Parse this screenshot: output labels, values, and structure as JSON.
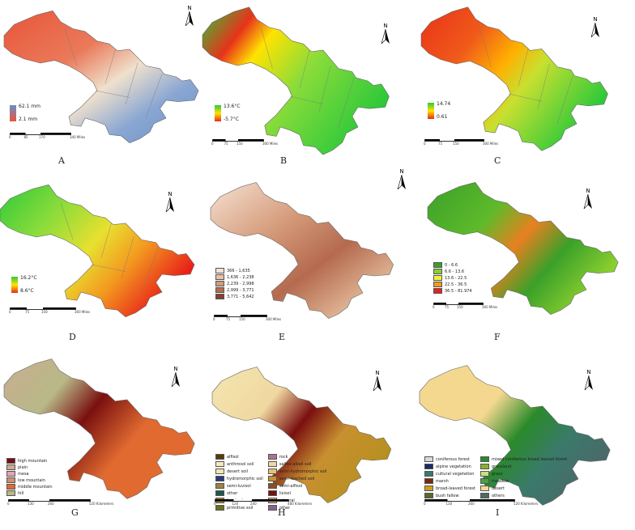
{
  "panels": [
    {
      "id": "A",
      "letter": "A",
      "legend_type": "gradient",
      "legend": {
        "high": "62.1 mm",
        "low": "2.1 mm",
        "colors": [
          "#6a8fc4",
          "#e8553a"
        ]
      },
      "scale": [
        "0",
        "85",
        "170",
        "340 Miles"
      ]
    },
    {
      "id": "B",
      "letter": "B",
      "legend_type": "gradient",
      "legend": {
        "high": "13.6°C",
        "low": "-5.7°C",
        "colors": [
          "#2ec93a",
          "#ffe300",
          "#e82a1a"
        ]
      },
      "scale": [
        "0",
        "75",
        "150",
        "300 Miles"
      ]
    },
    {
      "id": "C",
      "letter": "C",
      "legend_type": "gradient",
      "legend": {
        "high": "14.74",
        "low": "0.61",
        "colors": [
          "#2ec93a",
          "#ffe300",
          "#e82a1a"
        ]
      },
      "scale": [
        "0",
        "75",
        "150",
        "300 Miles"
      ]
    },
    {
      "id": "D",
      "letter": "D",
      "legend_type": "gradient",
      "legend": {
        "high": "16.2°C",
        "low": "8.6°C",
        "colors": [
          "#2ec93a",
          "#ffe300",
          "#e82a1a"
        ]
      },
      "scale": [
        "0",
        "75",
        "150",
        "300 Miles"
      ]
    },
    {
      "id": "E",
      "letter": "E",
      "legend_type": "classes",
      "legend": {
        "items": [
          {
            "label": "366 - 1,635",
            "color": "#f6e2d2"
          },
          {
            "label": "1,636 - 2,238",
            "color": "#e8c2a6"
          },
          {
            "label": "2,239 - 2,998",
            "color": "#d49a7a"
          },
          {
            "label": "2,999 - 3,771",
            "color": "#b56a4e"
          },
          {
            "label": "3,771 - 5,642",
            "color": "#8a3f2c"
          }
        ]
      },
      "scale": [
        "0",
        "75",
        "150",
        "300 Miles"
      ]
    },
    {
      "id": "F",
      "letter": "F",
      "legend_type": "classes",
      "legend": {
        "items": [
          {
            "label": "0 - 6.6",
            "color": "#3aa02a"
          },
          {
            "label": "6.6 - 13.6",
            "color": "#8bcf2e"
          },
          {
            "label": "13.6 - 22.5",
            "color": "#f2f233"
          },
          {
            "label": "22.5 - 36.5",
            "color": "#f39a1f"
          },
          {
            "label": "36.5 - 81.974",
            "color": "#e8201a"
          }
        ]
      },
      "scale": [
        "0",
        "75",
        "150",
        "300 Miles"
      ]
    },
    {
      "id": "G",
      "letter": "G",
      "legend_type": "classes",
      "legend": {
        "items": [
          {
            "label": "high mountain",
            "color": "#7a1010"
          },
          {
            "label": "plain",
            "color": "#c8ae90"
          },
          {
            "label": "mesa",
            "color": "#e8a0b8"
          },
          {
            "label": "low mountain",
            "color": "#d09070"
          },
          {
            "label": "middle mountain",
            "color": "#e06a30"
          },
          {
            "label": "hill",
            "color": "#b8b888"
          }
        ]
      },
      "scale": [
        "0",
        "130",
        "260",
        "520 Kilometers"
      ]
    },
    {
      "id": "H",
      "letter": "H",
      "legend_type": "classes2",
      "legend": {
        "items": [
          {
            "label": "alfisol",
            "color": "#5a3a0a"
          },
          {
            "label": "rock",
            "color": "#b07090"
          },
          {
            "label": "anthrosol soil",
            "color": "#f8e8c0"
          },
          {
            "label": "saline-alkali soil",
            "color": "#f0d8a0"
          },
          {
            "label": "desert soil",
            "color": "#f4e6b0"
          },
          {
            "label": "semi-hydromorphic soil",
            "color": "#e8c070"
          },
          {
            "label": "hydromorphic soil",
            "color": "#2a3a7a"
          },
          {
            "label": "semi-leached soil",
            "color": "#c89030"
          },
          {
            "label": "semi-luvisol",
            "color": "#a08040"
          },
          {
            "label": "semi-alfisol",
            "color": "#8a5020"
          },
          {
            "label": "other",
            "color": "#1a5a4a"
          },
          {
            "label": "lixisol",
            "color": "#7a1010"
          },
          {
            "label": "leached",
            "color": "#b89020"
          },
          {
            "label": "mineral",
            "color": "#e0b080"
          },
          {
            "label": "primitive soil",
            "color": "#687020"
          },
          {
            "label": "other",
            "color": "#8a6090"
          }
        ]
      },
      "scale": [
        "0",
        "120",
        "240",
        "480 Kilometers"
      ]
    },
    {
      "id": "I",
      "letter": "I",
      "legend_type": "classes2",
      "legend": {
        "items": [
          {
            "label": "coniferous forest",
            "color": "#d8d8e0"
          },
          {
            "label": "mixed coniferous broad leaved forest",
            "color": "#2a8a2a"
          },
          {
            "label": "alpine vegetation",
            "color": "#1a2a6a"
          },
          {
            "label": "grassland",
            "color": "#8ab02a"
          },
          {
            "label": "cultural vegetation",
            "color": "#3a7a6a"
          },
          {
            "label": "grass",
            "color": "#c8e080"
          },
          {
            "label": "marsh",
            "color": "#7a2a0a"
          },
          {
            "label": "meadow",
            "color": "#4aa040"
          },
          {
            "label": "broad-leaved forest",
            "color": "#c8a020"
          },
          {
            "label": "desert",
            "color": "#f4d890"
          },
          {
            "label": "bush fallow",
            "color": "#5a6a2a"
          },
          {
            "label": "others",
            "color": "#4a6a6a"
          }
        ]
      },
      "scale": [
        "0",
        "130",
        "260",
        "520 Kilometers"
      ]
    }
  ],
  "north_label": "N"
}
